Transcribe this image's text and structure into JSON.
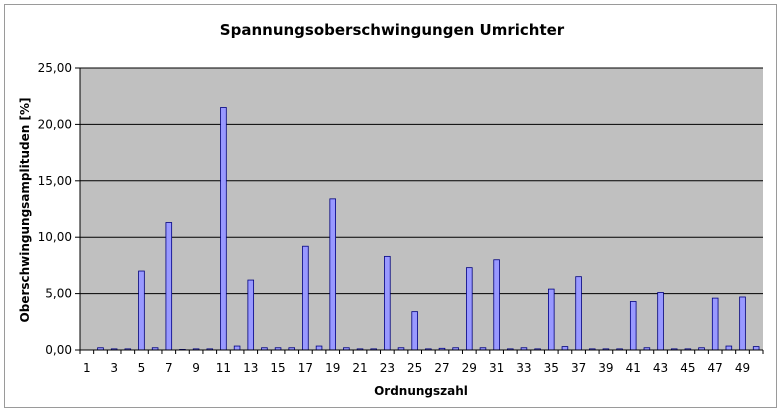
{
  "chart_data": {
    "type": "bar",
    "title": "Spannungsoberschwingungen Umrichter",
    "xlabel": "Ordnungszahl",
    "ylabel": "Oberschwingungsamplituden [%]",
    "ylim": [
      0,
      25
    ],
    "yticks": [
      "0,00",
      "5,00",
      "10,00",
      "15,00",
      "20,00",
      "25,00"
    ],
    "ytick_values": [
      0,
      5,
      10,
      15,
      20,
      25
    ],
    "grid": true,
    "legend": "none",
    "plot_background": "#c0c0c0",
    "bar_color": "#9999ff",
    "bar_edge": "#000080",
    "categories": [
      1,
      2,
      3,
      4,
      5,
      6,
      7,
      8,
      9,
      10,
      11,
      12,
      13,
      14,
      15,
      16,
      17,
      18,
      19,
      20,
      21,
      22,
      23,
      24,
      25,
      26,
      27,
      28,
      29,
      30,
      31,
      32,
      33,
      34,
      35,
      36,
      37,
      38,
      39,
      40,
      41,
      42,
      43,
      44,
      45,
      46,
      47,
      48,
      49,
      50
    ],
    "xticks": [
      "1",
      "3",
      "5",
      "7",
      "9",
      "11",
      "13",
      "15",
      "17",
      "19",
      "21",
      "23",
      "25",
      "27",
      "29",
      "31",
      "33",
      "35",
      "37",
      "39",
      "41",
      "43",
      "45",
      "47",
      "49"
    ],
    "values": [
      0,
      0.2,
      0.1,
      0.1,
      7.0,
      0.2,
      11.3,
      0.05,
      0.1,
      0.1,
      21.5,
      0.35,
      6.2,
      0.2,
      0.2,
      0.2,
      9.2,
      0.35,
      13.4,
      0.2,
      0.1,
      0.1,
      8.3,
      0.2,
      3.4,
      0.1,
      0.15,
      0.2,
      7.3,
      0.2,
      8.0,
      0.1,
      0.2,
      0.1,
      5.4,
      0.3,
      6.5,
      0.1,
      0.1,
      0.1,
      4.3,
      0.2,
      5.1,
      0.1,
      0.1,
      0.2,
      4.6,
      0.35,
      4.7,
      0.3
    ]
  }
}
